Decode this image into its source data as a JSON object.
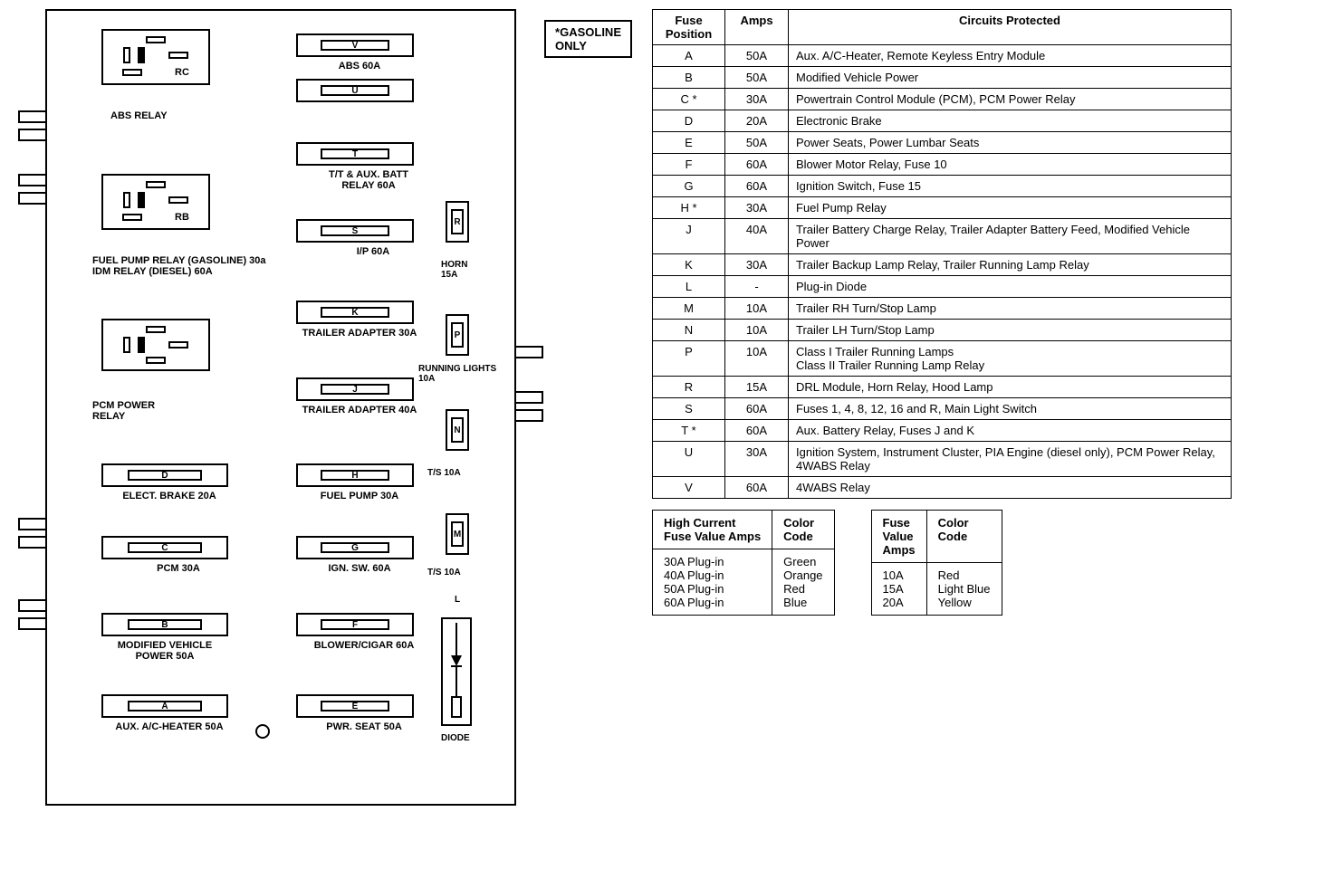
{
  "gasoline_note": "*GASOLINE\nONLY",
  "relays": {
    "abs": {
      "side_label": "RC",
      "caption": "ABS RELAY"
    },
    "fuel_pump": {
      "side_label": "RB",
      "caption": "FUEL PUMP RELAY (GASOLINE) 30a\nIDM RELAY (DIESEL) 60A"
    },
    "pcm_power": {
      "side_label": "",
      "caption": "PCM POWER\nRELAY"
    }
  },
  "wide_fuses": {
    "v": {
      "letter": "V",
      "caption": "ABS 60A"
    },
    "u": {
      "letter": "U",
      "caption": ""
    },
    "t": {
      "letter": "T",
      "caption": "T/T & AUX. BATT\nRELAY 60A"
    },
    "s": {
      "letter": "S",
      "caption": "I/P 60A"
    },
    "k": {
      "letter": "K",
      "caption": "TRAILER ADAPTER 30A"
    },
    "j": {
      "letter": "J",
      "caption": "TRAILER ADAPTER 40A"
    },
    "d": {
      "letter": "D",
      "caption": "ELECT. BRAKE 20A"
    },
    "h": {
      "letter": "H",
      "caption": "FUEL PUMP 30A"
    },
    "c": {
      "letter": "C",
      "caption": "PCM 30A"
    },
    "g": {
      "letter": "G",
      "caption": "IGN. SW. 60A"
    },
    "b": {
      "letter": "B",
      "caption": "MODIFIED VEHICLE\nPOWER 50A"
    },
    "f": {
      "letter": "F",
      "caption": "BLOWER/CIGAR 60A"
    },
    "a": {
      "letter": "A",
      "caption": "AUX. A/C-HEATER 50A"
    },
    "e": {
      "letter": "E",
      "caption": "PWR. SEAT 50A"
    }
  },
  "mini_fuses": {
    "r": {
      "letter": "R",
      "caption": "HORN\n15A"
    },
    "p": {
      "letter": "P",
      "caption": "RUNNING LIGHTS\n10A"
    },
    "n": {
      "letter": "N",
      "caption": "T/S 10A"
    },
    "m": {
      "letter": "M",
      "caption": "T/S 10A"
    },
    "l": {
      "letter": "L",
      "caption": ""
    }
  },
  "diode_caption": "DIODE",
  "main_table": {
    "headers": [
      "Fuse\nPosition",
      "Amps",
      "Circuits Protected"
    ],
    "rows": [
      [
        "A",
        "50A",
        "Aux.  A/C-Heater, Remote Keyless Entry Module"
      ],
      [
        "B",
        "50A",
        "Modified Vehicle Power"
      ],
      [
        "C  *",
        "30A",
        "Powertrain Control Module (PCM), PCM Power Relay"
      ],
      [
        "D",
        "20A",
        "Electronic Brake"
      ],
      [
        "E",
        "50A",
        "Power Seats, Power Lumbar Seats"
      ],
      [
        "F",
        "60A",
        "Blower Motor Relay, Fuse 10"
      ],
      [
        "G",
        "60A",
        "Ignition Switch, Fuse 15"
      ],
      [
        "H  *",
        "30A",
        "Fuel Pump Relay"
      ],
      [
        "J",
        "40A",
        "Trailer Battery Charge Relay, Trailer Adapter Battery Feed, Modified Vehicle Power"
      ],
      [
        "K",
        "30A",
        "Trailer Backup Lamp Relay, Trailer Running Lamp Relay"
      ],
      [
        "L",
        "-",
        "Plug-in Diode"
      ],
      [
        "M",
        "10A",
        "Trailer RH Turn/Stop Lamp"
      ],
      [
        "N",
        "10A",
        "Trailer LH Turn/Stop Lamp"
      ],
      [
        "P",
        "10A",
        "Class I Trailer Running  Lamps\nClass II Trailer Running  Lamp Relay"
      ],
      [
        "R",
        "15A",
        "DRL Module, Horn Relay, Hood Lamp"
      ],
      [
        "S",
        "60A",
        "Fuses 1, 4, 8, 12, 16 and R,  Main Light Switch"
      ],
      [
        "T  *",
        "60A",
        "Aux. Battery Relay, Fuses J and K"
      ],
      [
        "U",
        "30A",
        "Ignition System, Instrument Cluster, PIA Engine (diesel only), PCM Power Relay, 4WABS Relay"
      ],
      [
        "V",
        "60A",
        "4WABS Relay"
      ]
    ]
  },
  "high_current_table": {
    "headers": [
      "High Current\nFuse Value Amps",
      "Color\nCode"
    ],
    "rows": [
      [
        "30A Plug-in",
        "Green"
      ],
      [
        "40A Plug-in",
        "Orange"
      ],
      [
        "50A Plug-in",
        "Red"
      ],
      [
        "60A Plug-in",
        "Blue"
      ]
    ]
  },
  "fuse_value_table": {
    "headers": [
      "Fuse\nValue\nAmps",
      "Color\nCode"
    ],
    "rows": [
      [
        "10A",
        "Red"
      ],
      [
        "15A",
        "Light Blue"
      ],
      [
        "20A",
        "Yellow"
      ]
    ]
  },
  "style": {
    "bg": "#ffffff",
    "fg": "#000000",
    "border_width": 2,
    "font_family": "Arial",
    "diagram_width": 520,
    "diagram_height": 880
  }
}
